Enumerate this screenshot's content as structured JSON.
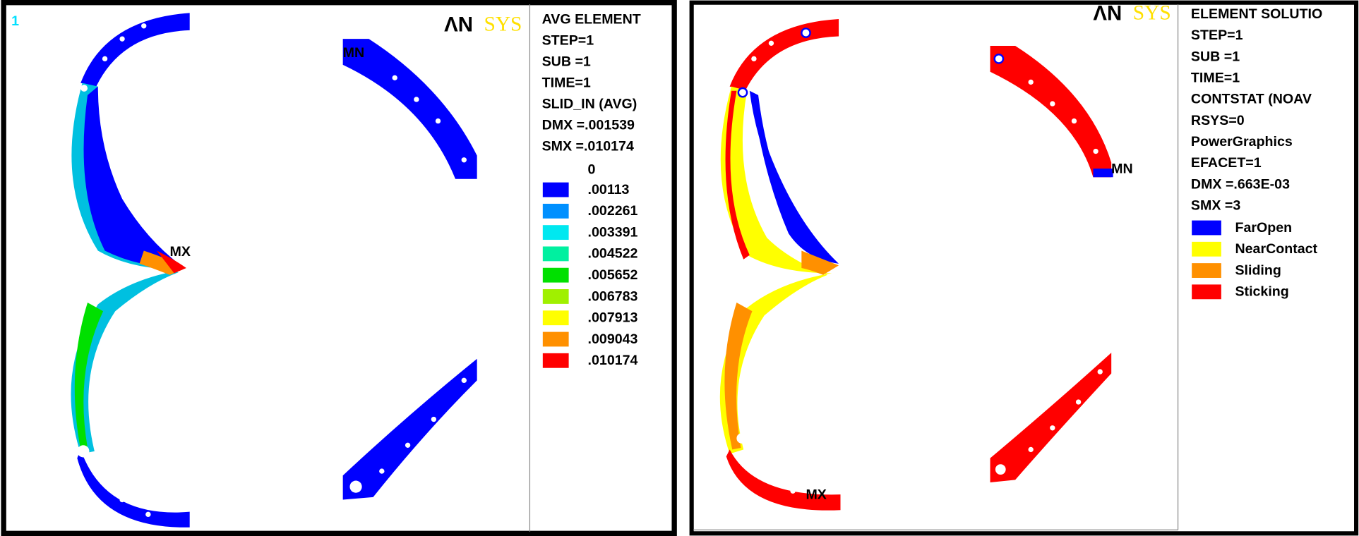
{
  "panels": [
    {
      "window_number": "1",
      "logo": {
        "mark": "ΛN",
        "word": "SYS"
      },
      "info_lines": [
        "AVG ELEMENT",
        "STEP=1",
        "SUB =1",
        "TIME=1",
        "SLID_IN  (AVG)",
        "DMX =.001539",
        "SMX =.010174"
      ],
      "scale_start": "0",
      "legend": [
        {
          "label": ".00113",
          "color": "#0000ff"
        },
        {
          "label": ".002261",
          "color": "#0090ff"
        },
        {
          "label": ".003391",
          "color": "#00e8f0"
        },
        {
          "label": ".004522",
          "color": "#00f0a0"
        },
        {
          "label": ".005652",
          "color": "#00e000"
        },
        {
          "label": ".006783",
          "color": "#a0f000"
        },
        {
          "label": ".007913",
          "color": "#ffff00"
        },
        {
          "label": ".009043",
          "color": "#ff9000"
        },
        {
          "label": ".010174",
          "color": "#ff0000"
        }
      ],
      "markers": {
        "min": "MN",
        "max": "MX"
      }
    },
    {
      "logo": {
        "mark": "ΛN",
        "word": "SYS"
      },
      "info_lines": [
        "ELEMENT SOLUTIO",
        "STEP=1",
        "SUB =1",
        "TIME=1",
        "CONTSTAT (NOAV",
        "RSYS=0",
        "PowerGraphics",
        "EFACET=1",
        "DMX =.663E-03",
        "SMX =3"
      ],
      "legend": [
        {
          "label": "FarOpen",
          "color": "#0000ff"
        },
        {
          "label": "NearContact",
          "color": "#ffff00"
        },
        {
          "label": "Sliding",
          "color": "#ff9000"
        },
        {
          "label": "Sticking",
          "color": "#ff0000"
        }
      ],
      "markers": {
        "min": "MN",
        "max": "MX"
      }
    }
  ]
}
